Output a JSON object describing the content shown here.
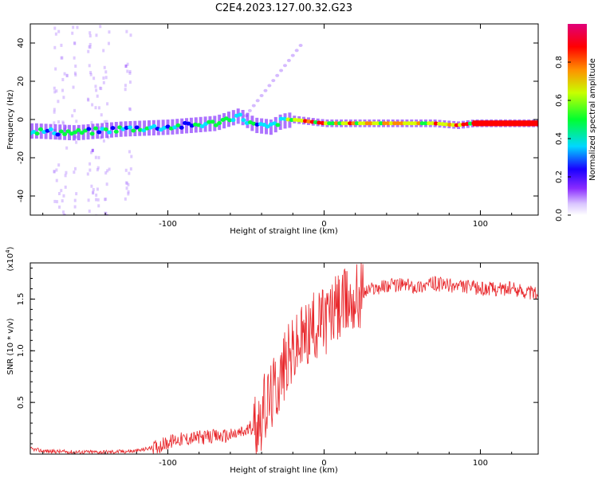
{
  "chart_data": [
    {
      "type": "heatmap",
      "title": "C2E4.2023.127.00.32.G23",
      "xlabel": "Height of straight line (km)",
      "ylabel": "Frequency (Hz)",
      "xlim": [
        -188,
        137
      ],
      "ylim": [
        -50,
        50
      ],
      "x_ticks": [
        "-100",
        "0",
        "100"
      ],
      "y_ticks": [
        "40",
        "20",
        "0",
        "-20",
        "-40"
      ],
      "colorbar": {
        "label": "Normalized spectral amplitude",
        "range": [
          0,
          1
        ],
        "ticks": [
          "0.0",
          "0.2",
          "0.4",
          "0.6",
          "0.8"
        ],
        "colors": [
          "#ffffff",
          "#b98cff",
          "#6a00ff",
          "#0000ff",
          "#00e5ff",
          "#00ff40",
          "#d8ff00",
          "#ff8c00",
          "#ff0000",
          "#e0007a"
        ]
      },
      "ridge_frequency_hz": [
        {
          "x": -185,
          "y": -6
        },
        {
          "x": -160,
          "y": -7
        },
        {
          "x": -130,
          "y": -5
        },
        {
          "x": -100,
          "y": -4
        },
        {
          "x": -70,
          "y": -2
        },
        {
          "x": -55,
          "y": 2
        },
        {
          "x": -45,
          "y": -3
        },
        {
          "x": -35,
          "y": -4
        },
        {
          "x": -28,
          "y": -1
        },
        {
          "x": -20,
          "y": 0
        },
        {
          "x": 0,
          "y": -2
        },
        {
          "x": 20,
          "y": -2
        },
        {
          "x": 70,
          "y": -2
        },
        {
          "x": 85,
          "y": -3
        },
        {
          "x": 95,
          "y": -2
        },
        {
          "x": 137,
          "y": -2
        }
      ]
    },
    {
      "type": "line",
      "ylabel": "SNR (10 * v/v)",
      "y_multiplier_label": "(x10",
      "y_multiplier_exp": "4",
      "xlabel": "Height of straight line (km)",
      "xlim": [
        -188,
        137
      ],
      "ylim": [
        0,
        1.85
      ],
      "x_ticks": [
        "-100",
        "0",
        "100"
      ],
      "y_ticks": [
        "0.5",
        "1.0",
        "1.5"
      ],
      "series": [
        {
          "color": "#e8262a",
          "x": [
            -188,
            -180,
            -160,
            -140,
            -120,
            -105,
            -95,
            -80,
            -70,
            -60,
            -50,
            -45,
            -40,
            -35,
            -30,
            -25,
            -20,
            -15,
            -10,
            -5,
            0,
            10,
            20,
            30,
            40,
            50,
            60,
            70,
            80,
            90,
            100,
            110,
            120,
            130,
            137
          ],
          "y": [
            0.05,
            0.03,
            0.02,
            0.02,
            0.03,
            0.08,
            0.14,
            0.16,
            0.17,
            0.18,
            0.22,
            0.28,
            0.38,
            0.52,
            0.68,
            0.86,
            0.98,
            1.08,
            1.18,
            1.24,
            1.3,
            1.42,
            1.52,
            1.6,
            1.63,
            1.64,
            1.62,
            1.65,
            1.63,
            1.62,
            1.6,
            1.6,
            1.6,
            1.57,
            1.55
          ]
        }
      ]
    }
  ]
}
